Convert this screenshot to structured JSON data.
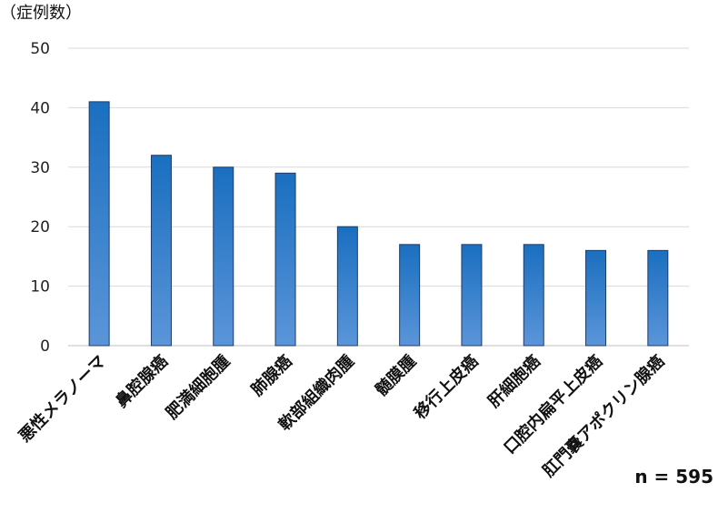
{
  "chart_data": {
    "type": "bar",
    "ylabel": "（症例数）",
    "ylim": [
      0,
      50
    ],
    "yticks": [
      0,
      10,
      20,
      30,
      40,
      50
    ],
    "grid": true,
    "categories": [
      "悪性メラノーマ",
      "鼻腔腺癌",
      "肥満細胞腫",
      "肺腺癌",
      "軟部組織肉腫",
      "髄膜腫",
      "移行上皮癌",
      "肝細胞癌",
      "口腔内扁平上皮癌",
      "肛門嚢アポクリン腺癌"
    ],
    "values": [
      41,
      32,
      30,
      29,
      20,
      17,
      17,
      17,
      16,
      16
    ],
    "annotation": "n = 595",
    "bar_color_top": "#1a6fc0",
    "bar_color_bottom": "#5b95d9"
  }
}
